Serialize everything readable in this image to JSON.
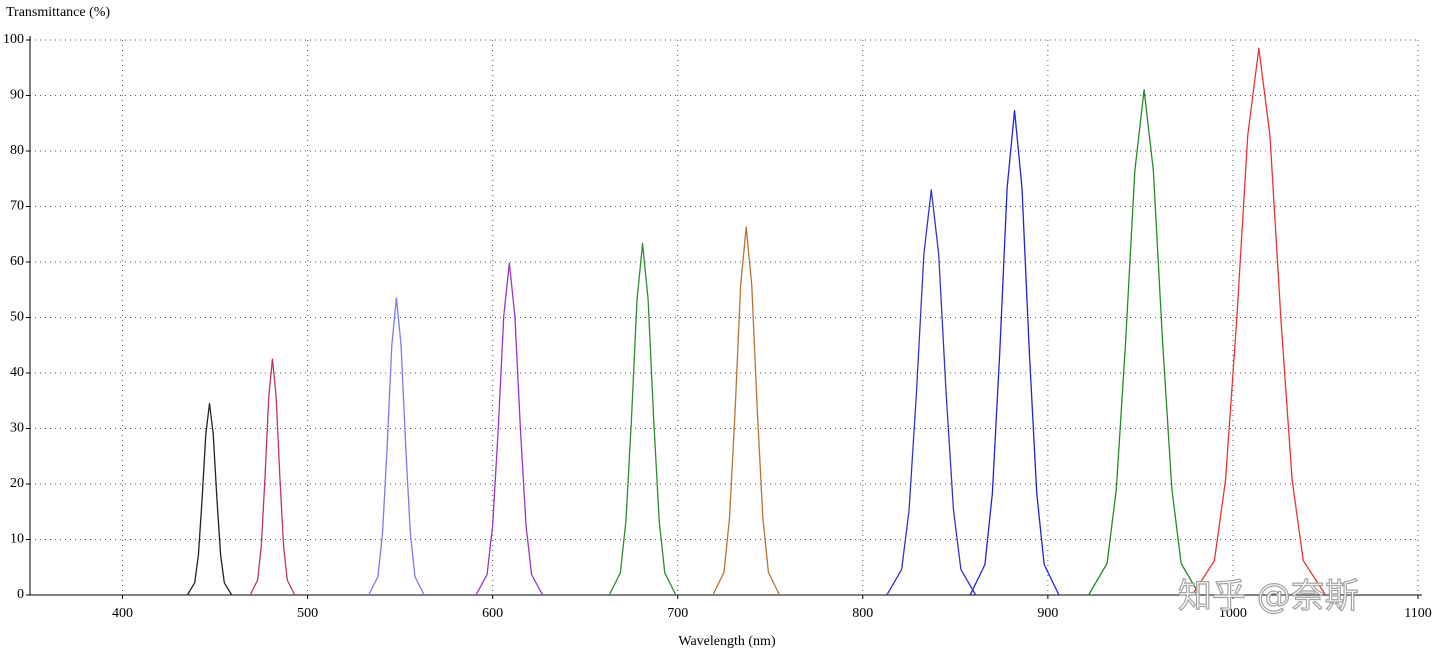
{
  "chart_data": {
    "type": "line",
    "title": "Transmittance (%)",
    "x_label": "Wavelength (nm)",
    "watermark": "知乎 @奈斯",
    "xlim": [
      350,
      1100
    ],
    "xticks": [
      400,
      500,
      600,
      700,
      800,
      900,
      1000,
      1100
    ],
    "ylim": [
      0,
      100
    ],
    "yticks": [
      0,
      10,
      20,
      30,
      40,
      50,
      60,
      70,
      80,
      90,
      100
    ],
    "grid": true,
    "series": [
      {
        "color": "#222222",
        "x": [
          435,
          439,
          441,
          443,
          445,
          447,
          449,
          451,
          453,
          455,
          459
        ],
        "values": [
          0,
          2.2,
          7.2,
          17.3,
          29,
          34.5,
          29,
          17.3,
          7.2,
          2.2,
          0
        ]
      },
      {
        "color": "#c2306a",
        "x": [
          469,
          473,
          475,
          477,
          479,
          481,
          483,
          485,
          487,
          489,
          493
        ],
        "values": [
          0,
          2.7,
          8.9,
          21.3,
          35.7,
          42.5,
          35.7,
          21.3,
          8.9,
          2.7,
          0
        ]
      },
      {
        "color": "#7b7bf0",
        "x": [
          533,
          538,
          540.5,
          543,
          545.5,
          548,
          550.5,
          553,
          555.5,
          558,
          563
        ],
        "values": [
          0,
          3.3,
          11.2,
          26.8,
          45,
          53.5,
          45,
          26.8,
          11.2,
          3.3,
          0
        ]
      },
      {
        "color": "#9933cc",
        "x": [
          591,
          597,
          600,
          603,
          606,
          609,
          612,
          615,
          618,
          621,
          627
        ],
        "values": [
          0,
          3.7,
          12.6,
          29.9,
          50.3,
          59.8,
          50.3,
          29.9,
          12.6,
          3.7,
          0
        ]
      },
      {
        "color": "#2e8b2e",
        "x": [
          663,
          669,
          672,
          675,
          678,
          681,
          684,
          687,
          690,
          693,
          699
        ],
        "values": [
          0,
          4,
          13.3,
          31.7,
          53.2,
          63.3,
          53.2,
          31.7,
          13.3,
          4,
          0
        ]
      },
      {
        "color": "#b87333",
        "x": [
          719,
          725,
          728,
          731,
          734,
          737,
          740,
          743,
          746,
          749,
          755
        ],
        "values": [
          0,
          4.1,
          13.9,
          33.2,
          55.8,
          66.3,
          55.8,
          33.2,
          13.9,
          4.1,
          0
        ]
      },
      {
        "color": "#3333cc",
        "x": [
          813,
          821,
          825,
          829,
          833,
          837,
          841,
          845,
          849,
          853,
          861
        ],
        "values": [
          0,
          4.6,
          15.3,
          36.5,
          61.4,
          73,
          61.4,
          36.5,
          15.3,
          4.6,
          0
        ]
      },
      {
        "color": "#2222dd",
        "x": [
          858,
          866,
          870,
          874,
          878,
          882,
          886,
          890,
          894,
          898,
          906
        ],
        "values": [
          0,
          5.5,
          18.3,
          43.7,
          73.4,
          87.3,
          73.4,
          43.7,
          18.3,
          5.5,
          0
        ]
      },
      {
        "color": "#228b22",
        "x": [
          922,
          932,
          937,
          942,
          947,
          952,
          957,
          962,
          967,
          972,
          982
        ],
        "values": [
          0,
          5.7,
          19.1,
          45.5,
          76.5,
          91,
          76.5,
          45.5,
          19.1,
          5.7,
          0
        ]
      },
      {
        "color": "#ee3333",
        "x": [
          978,
          990,
          996,
          1002,
          1008,
          1014,
          1020,
          1026,
          1032,
          1038,
          1050
        ],
        "values": [
          0,
          6.2,
          20.7,
          49.3,
          82.8,
          98.5,
          82.8,
          49.3,
          20.7,
          6.2,
          0
        ]
      }
    ]
  }
}
